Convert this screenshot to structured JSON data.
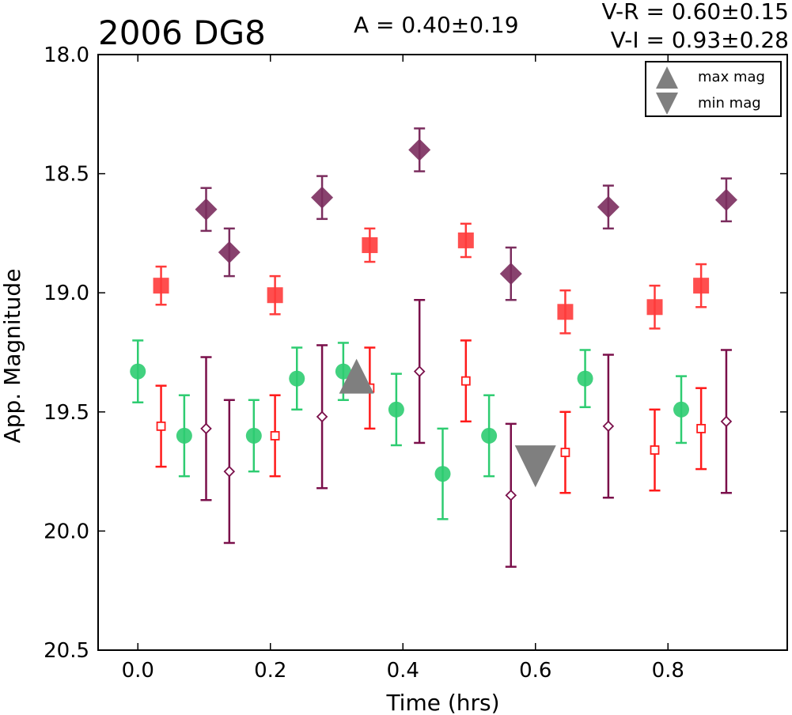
{
  "chart_data": {
    "type": "scatter",
    "title": "2006 DG8",
    "annotations": {
      "amplitude": "A  = 0.40±0.19",
      "v_r": "V-R = 0.60±0.15",
      "v_i": "V-I  = 0.93±0.28"
    },
    "xlabel": "Time (hrs)",
    "ylabel": "App. Magnitude",
    "xlim": [
      -0.06,
      0.98
    ],
    "ylim": [
      20.5,
      18.0
    ],
    "y_inverted": true,
    "grid": false,
    "legend_position": "top-right",
    "x_ticks": [
      0.0,
      0.2,
      0.4,
      0.6,
      0.8
    ],
    "x_tick_labels": [
      "0.0",
      "0.2",
      "0.4",
      "0.6",
      "0.8"
    ],
    "y_ticks": [
      18.0,
      18.5,
      19.0,
      19.5,
      20.0,
      20.5
    ],
    "y_tick_labels": [
      "18.0",
      "18.5",
      "19.0",
      "19.5",
      "20.0",
      "20.5"
    ],
    "legend": [
      {
        "marker": "triangle-up",
        "label": "max mag"
      },
      {
        "marker": "triangle-down",
        "label": "min mag"
      }
    ],
    "markers": [
      {
        "type": "triangle-up",
        "x": 0.33,
        "y": 19.37,
        "color": "#7f7f7f"
      },
      {
        "type": "triangle-down",
        "x": 0.6,
        "y": 19.73,
        "color": "#7f7f7f"
      }
    ],
    "series": [
      {
        "marker": "circle",
        "filled": true,
        "color": "#2ecc71",
        "points": [
          {
            "x": 0.0,
            "y": 19.33,
            "err": 0.13
          },
          {
            "x": 0.07,
            "y": 19.6,
            "err": 0.17
          },
          {
            "x": 0.175,
            "y": 19.6,
            "err": 0.15
          },
          {
            "x": 0.24,
            "y": 19.36,
            "err": 0.13
          },
          {
            "x": 0.31,
            "y": 19.33,
            "err": 0.12
          },
          {
            "x": 0.39,
            "y": 19.49,
            "err": 0.15
          },
          {
            "x": 0.46,
            "y": 19.76,
            "err": 0.19
          },
          {
            "x": 0.53,
            "y": 19.6,
            "err": 0.17
          },
          {
            "x": 0.675,
            "y": 19.36,
            "err": 0.12
          },
          {
            "x": 0.82,
            "y": 19.49,
            "err": 0.14
          }
        ]
      },
      {
        "marker": "square",
        "filled": true,
        "color": "#ff3b3b",
        "points": [
          {
            "x": 0.035,
            "y": 18.97,
            "err": 0.08
          },
          {
            "x": 0.207,
            "y": 19.01,
            "err": 0.08
          },
          {
            "x": 0.35,
            "y": 18.8,
            "err": 0.07
          },
          {
            "x": 0.495,
            "y": 18.78,
            "err": 0.07
          },
          {
            "x": 0.645,
            "y": 19.08,
            "err": 0.09
          },
          {
            "x": 0.78,
            "y": 19.06,
            "err": 0.09
          },
          {
            "x": 0.85,
            "y": 18.97,
            "err": 0.09
          }
        ]
      },
      {
        "marker": "diamond",
        "filled": true,
        "color": "#7b2d5e",
        "points": [
          {
            "x": 0.103,
            "y": 18.65,
            "err": 0.09
          },
          {
            "x": 0.138,
            "y": 18.83,
            "err": 0.1
          },
          {
            "x": 0.278,
            "y": 18.6,
            "err": 0.09
          },
          {
            "x": 0.425,
            "y": 18.4,
            "err": 0.09
          },
          {
            "x": 0.563,
            "y": 18.92,
            "err": 0.11
          },
          {
            "x": 0.71,
            "y": 18.64,
            "err": 0.09
          },
          {
            "x": 0.888,
            "y": 18.61,
            "err": 0.09
          }
        ]
      },
      {
        "marker": "square",
        "filled": false,
        "color": "#ff1a1a",
        "points": [
          {
            "x": 0.035,
            "y": 19.56,
            "err": 0.17
          },
          {
            "x": 0.207,
            "y": 19.6,
            "err": 0.17
          },
          {
            "x": 0.35,
            "y": 19.4,
            "err": 0.17
          },
          {
            "x": 0.495,
            "y": 19.37,
            "err": 0.17
          },
          {
            "x": 0.645,
            "y": 19.67,
            "err": 0.17
          },
          {
            "x": 0.78,
            "y": 19.66,
            "err": 0.17
          },
          {
            "x": 0.85,
            "y": 19.57,
            "err": 0.17
          }
        ]
      },
      {
        "marker": "diamond",
        "filled": false,
        "color": "#7a0f4a",
        "points": [
          {
            "x": 0.103,
            "y": 19.57,
            "err": 0.3
          },
          {
            "x": 0.138,
            "y": 19.75,
            "err": 0.3
          },
          {
            "x": 0.278,
            "y": 19.52,
            "err": 0.3
          },
          {
            "x": 0.425,
            "y": 19.33,
            "err": 0.3
          },
          {
            "x": 0.563,
            "y": 19.85,
            "err": 0.3
          },
          {
            "x": 0.71,
            "y": 19.56,
            "err": 0.3
          },
          {
            "x": 0.888,
            "y": 19.54,
            "err": 0.3
          }
        ]
      }
    ]
  }
}
